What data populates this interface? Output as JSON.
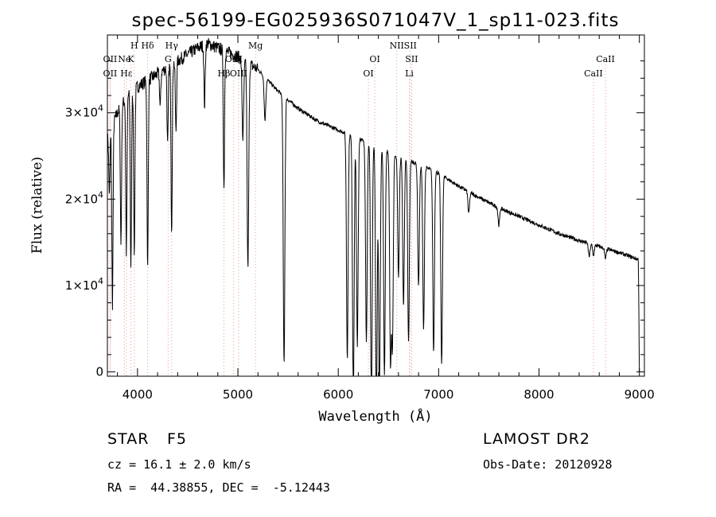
{
  "chart_data": {
    "type": "line",
    "title": "spec-56199-EG025936S071047V_1_sp11-023.fits",
    "xlabel": "Wavelength (Å)",
    "ylabel": "Flux (relative)",
    "xlim": [
      3700,
      9050
    ],
    "ylim": [
      -500,
      39000
    ],
    "x_ticks": [
      4000,
      5000,
      6000,
      7000,
      8000,
      9000
    ],
    "y_ticks": [
      {
        "value": 0,
        "base": "0",
        "exp": ""
      },
      {
        "value": 10000,
        "base": "1×10",
        "exp": "4"
      },
      {
        "value": 20000,
        "base": "2×10",
        "exp": "4"
      },
      {
        "value": 30000,
        "base": "3×10",
        "exp": "4"
      }
    ],
    "grid": false,
    "legend": "none",
    "line_color": "#000000",
    "marker_color": "#e0a090",
    "markers": [
      {
        "label": "Hδ",
        "x": 4101,
        "row": 0
      },
      {
        "label": "H",
        "x": 3968,
        "row": 0
      },
      {
        "label": "Hγ",
        "x": 4340,
        "row": 0
      },
      {
        "label": "Mg",
        "x": 5175,
        "row": 0
      },
      {
        "label": "NII",
        "x": 6583,
        "row": 0
      },
      {
        "label": "SII",
        "x": 6718,
        "row": 0
      },
      {
        "label": "OII",
        "x": 3727,
        "row": 1
      },
      {
        "label": "Ne",
        "x": 3869,
        "row": 1
      },
      {
        "label": "K",
        "x": 3934,
        "row": 1
      },
      {
        "label": "G",
        "x": 4305,
        "row": 1
      },
      {
        "label": "OIII",
        "x": 4959,
        "row": 1
      },
      {
        "label": "OI",
        "x": 6364,
        "row": 1
      },
      {
        "label": "SII",
        "x": 6731,
        "row": 1
      },
      {
        "label": "CaII",
        "x": 8662,
        "row": 1
      },
      {
        "label": "OII",
        "x": 3727,
        "row": 2
      },
      {
        "label": "Hε",
        "x": 3889,
        "row": 2
      },
      {
        "label": "Hβ",
        "x": 4861,
        "row": 2
      },
      {
        "label": "OIII",
        "x": 5007,
        "row": 2
      },
      {
        "label": "OI",
        "x": 6300,
        "row": 2
      },
      {
        "label": "Li",
        "x": 6708,
        "row": 2
      },
      {
        "label": "CaII",
        "x": 8542,
        "row": 2
      }
    ],
    "series": [
      {
        "continuum": [
          [
            3700,
            27000
          ],
          [
            3800,
            30000
          ],
          [
            3900,
            32000
          ],
          [
            4000,
            33000
          ],
          [
            4200,
            34500
          ],
          [
            4400,
            36000
          ],
          [
            4600,
            37500
          ],
          [
            4700,
            38000
          ],
          [
            4800,
            37500
          ],
          [
            5000,
            36500
          ],
          [
            5200,
            35000
          ],
          [
            5400,
            32500
          ],
          [
            5600,
            30500
          ],
          [
            5800,
            29000
          ],
          [
            6000,
            28000
          ],
          [
            6200,
            27000
          ],
          [
            6400,
            26000
          ],
          [
            6600,
            25000
          ],
          [
            6800,
            24000
          ],
          [
            7000,
            23000
          ],
          [
            7200,
            21500
          ],
          [
            7400,
            20200
          ],
          [
            7600,
            19000
          ],
          [
            7800,
            18000
          ],
          [
            8000,
            17000
          ],
          [
            8200,
            16000
          ],
          [
            8400,
            15200
          ],
          [
            8600,
            14500
          ],
          [
            8800,
            13800
          ],
          [
            8990,
            13000
          ],
          [
            9000,
            0
          ]
        ],
        "absorption_lines": [
          [
            3720,
            7000
          ],
          [
            3750,
            21000
          ],
          [
            3835,
            16000
          ],
          [
            3889,
            18000
          ],
          [
            3934,
            20000
          ],
          [
            3968,
            19000
          ],
          [
            4101,
            22000
          ],
          [
            4226,
            4000
          ],
          [
            4300,
            9000
          ],
          [
            4340,
            19000
          ],
          [
            4383,
            8000
          ],
          [
            4668,
            7000
          ],
          [
            4861,
            16000
          ],
          [
            5050,
            9000
          ],
          [
            5100,
            24000
          ],
          [
            5270,
            5000
          ],
          [
            5460,
            31000
          ],
          [
            6090,
            26000
          ],
          [
            6150,
            31000
          ],
          [
            6190,
            24000
          ],
          [
            6280,
            23000
          ],
          [
            6330,
            31000
          ],
          [
            6380,
            31000
          ],
          [
            6410,
            30000
          ],
          [
            6460,
            26000
          ],
          [
            6520,
            24000
          ],
          [
            6540,
            22000
          ],
          [
            6600,
            14000
          ],
          [
            6650,
            17000
          ],
          [
            6700,
            21000
          ],
          [
            6800,
            14000
          ],
          [
            6850,
            19000
          ],
          [
            6950,
            21000
          ],
          [
            7030,
            22000
          ],
          [
            7300,
            2500
          ],
          [
            7600,
            2000
          ],
          [
            8500,
            1500
          ],
          [
            8542,
            1200
          ],
          [
            8662,
            1200
          ]
        ]
      }
    ]
  },
  "info": {
    "object_class": "STAR",
    "subclass": "F5",
    "survey": "LAMOST DR2",
    "redshift": "cz = 16.1 ± 2.0 km/s",
    "obs_date": "Obs-Date: 20120928",
    "coords": "RA =  44.38855, DEC =  -5.12443"
  }
}
